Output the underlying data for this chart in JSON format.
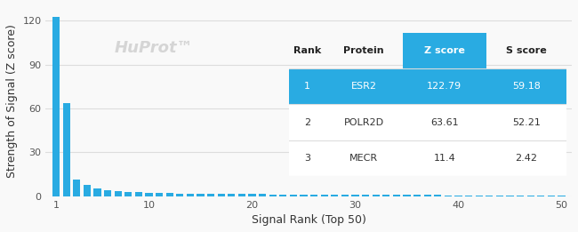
{
  "bar_color": "#29abe2",
  "bar_values": [
    122.79,
    63.61,
    11.4,
    7.5,
    5.5,
    4.2,
    3.5,
    3.0,
    2.8,
    2.5,
    2.2,
    2.0,
    1.9,
    1.8,
    1.7,
    1.6,
    1.55,
    1.5,
    1.45,
    1.4,
    1.35,
    1.3,
    1.25,
    1.2,
    1.15,
    1.1,
    1.05,
    1.0,
    0.98,
    0.95,
    0.92,
    0.89,
    0.86,
    0.83,
    0.8,
    0.77,
    0.74,
    0.71,
    0.68,
    0.65,
    0.62,
    0.59,
    0.56,
    0.53,
    0.5,
    0.47,
    0.44,
    0.41,
    0.38,
    0.35
  ],
  "xlabel": "Signal Rank (Top 50)",
  "ylabel": "Strength of Signal (Z score)",
  "watermark": "HuProt™",
  "watermark_color": "#cccccc",
  "ylim": [
    0,
    130
  ],
  "yticks": [
    0,
    30,
    60,
    90,
    120
  ],
  "xlim": [
    0,
    51
  ],
  "xticks": [
    1,
    10,
    20,
    30,
    40,
    50
  ],
  "table_header_bg": "#29abe2",
  "table_header_text_color": "#ffffff",
  "table_row1_bg": "#29abe2",
  "table_row1_text_color": "#ffffff",
  "table_other_bg": "#ffffff",
  "table_other_text_color": "#333333",
  "table_headers": [
    "Rank",
    "Protein",
    "Z score",
    "S score"
  ],
  "table_rows": [
    [
      "1",
      "ESR2",
      "122.79",
      "59.18"
    ],
    [
      "2",
      "POLR2D",
      "63.61",
      "52.21"
    ],
    [
      "3",
      "MECR",
      "11.4",
      "2.42"
    ]
  ],
  "grid_color": "#dddddd",
  "background_color": "#f9f9f9",
  "axis_color": "#cccccc"
}
